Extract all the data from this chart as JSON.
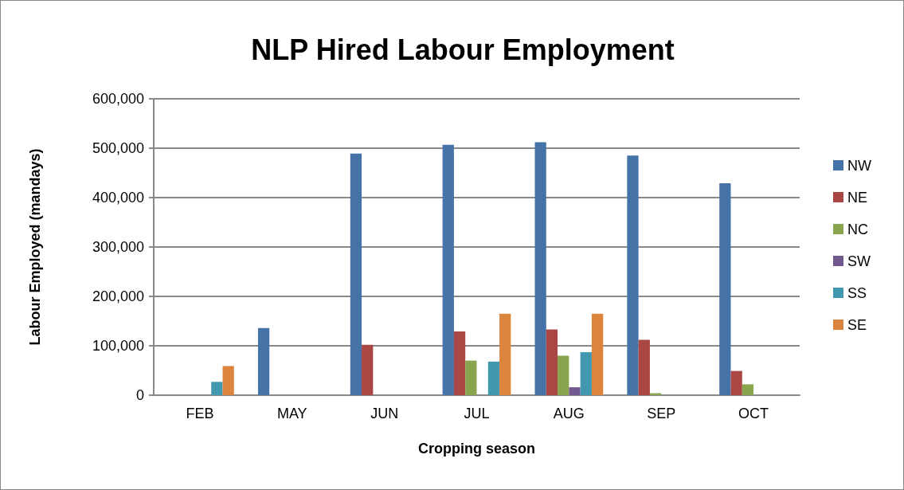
{
  "chart_data": {
    "type": "bar",
    "title": "NLP Hired Labour Employment",
    "xlabel": "Cropping season",
    "ylabel": "Labour Employed (mandays)",
    "categories": [
      "FEB",
      "MAY",
      "JUN",
      "JUL",
      "AUG",
      "SEP",
      "OCT"
    ],
    "series": [
      {
        "name": "NW",
        "color": "#4572a7",
        "values": [
          null,
          136000,
          489000,
          507000,
          512000,
          485000,
          429000
        ]
      },
      {
        "name": "NE",
        "color": "#aa4643",
        "values": [
          null,
          null,
          102000,
          129000,
          133000,
          112000,
          49000
        ]
      },
      {
        "name": "NC",
        "color": "#89a54e",
        "values": [
          null,
          null,
          null,
          70000,
          80000,
          4000,
          22000
        ]
      },
      {
        "name": "SW",
        "color": "#71588f",
        "values": [
          null,
          null,
          null,
          null,
          16000,
          null,
          null
        ]
      },
      {
        "name": "SS",
        "color": "#4198af",
        "values": [
          27000,
          null,
          null,
          68000,
          87000,
          null,
          null
        ]
      },
      {
        "name": "SE",
        "color": "#db843d",
        "values": [
          59000,
          null,
          null,
          165000,
          165000,
          null,
          null
        ]
      }
    ],
    "ylim": [
      0,
      600000
    ],
    "yticks": [
      0,
      {
        "value": 100000,
        "label": "100,000"
      },
      {
        "value": 200000,
        "label": "200,000"
      },
      {
        "value": 300000,
        "label": "300,000"
      },
      {
        "value": 400000,
        "label": "400,000"
      },
      {
        "value": 500000,
        "label": "500,000"
      },
      {
        "value": 600000,
        "label": "600,000"
      }
    ],
    "grid": "y",
    "legend": "right"
  }
}
